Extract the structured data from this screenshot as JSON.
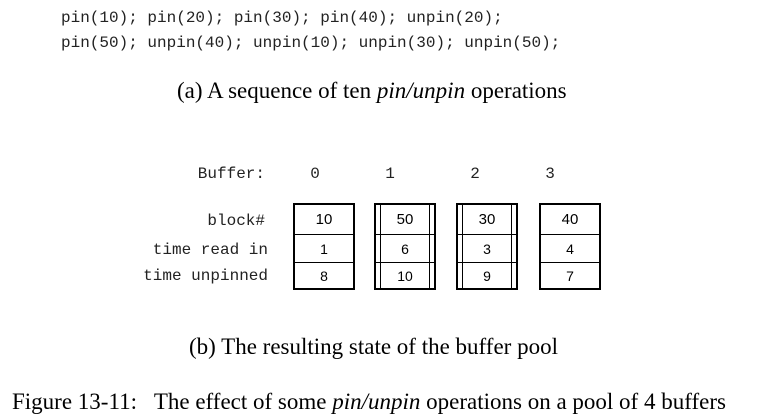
{
  "code": {
    "line1": "pin(10); pin(20); pin(30); pin(40); unpin(20);",
    "line2": "pin(50); unpin(40); unpin(10); unpin(30); unpin(50);"
  },
  "caption_a": {
    "prefix": "(a) A sequence of ten ",
    "emph": "pin/unpin",
    "suffix": " operations"
  },
  "buffer_header": "Buffer:",
  "row_labels": {
    "block": "block#",
    "time_read_in": "time read in",
    "time_unpinned": "time unpinned"
  },
  "buffers": [
    {
      "index": "0",
      "block": "10",
      "read_in": "1",
      "unpinned": "8"
    },
    {
      "index": "1",
      "block": "50",
      "read_in": "6",
      "unpinned": "10"
    },
    {
      "index": "2",
      "block": "30",
      "read_in": "3",
      "unpinned": "9"
    },
    {
      "index": "3",
      "block": "40",
      "read_in": "4",
      "unpinned": "7"
    }
  ],
  "caption_b": "(b) The resulting state of the buffer pool",
  "figure_caption": {
    "prefix": "Figure 13-11:   The effect of some ",
    "emph": "pin/unpin",
    "suffix": " operations on a pool of 4 buffers"
  }
}
